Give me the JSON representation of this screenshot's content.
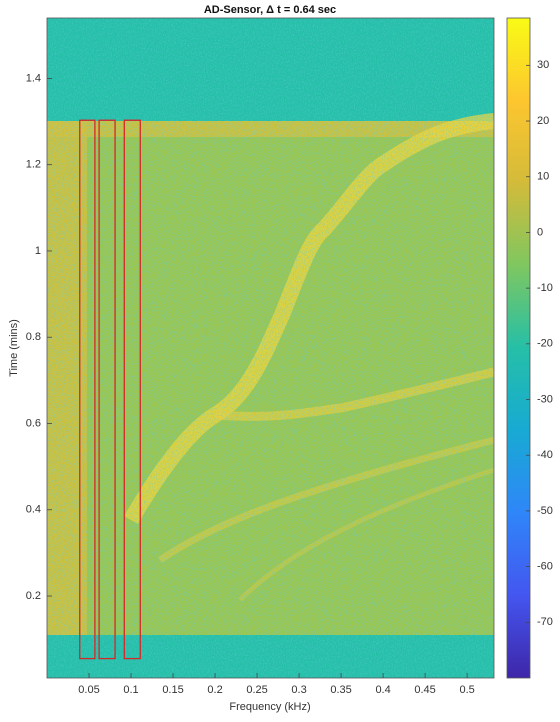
{
  "chart_data": {
    "type": "heatmap",
    "title": "AD-Sensor, Δ t = 0.64 sec",
    "x_label": "Frequency (kHz)",
    "y_label": "Time (mins)",
    "xlim": [
      0,
      0.532
    ],
    "xticks": [
      0.05,
      0.1,
      0.15,
      0.2,
      0.25,
      0.3,
      0.35,
      0.4,
      0.45,
      0.5
    ],
    "ylim": [
      0.01,
      1.54
    ],
    "yticks": [
      0.2,
      0.4,
      0.6,
      0.8,
      1,
      1.2,
      1.4
    ],
    "clim": [
      -80,
      38.5
    ],
    "cticks": [
      30,
      20,
      10,
      0,
      -10,
      -20,
      -30,
      -40,
      -50,
      -60,
      -70
    ],
    "colormap": [
      "#3e26a8",
      "#4456f0",
      "#2f86f9",
      "#18aad3",
      "#25bfa7",
      "#7fc760",
      "#d3bb3a",
      "#fdc62f",
      "#f9fb15"
    ],
    "boxes": [
      {
        "x": [
          0.039,
          0.057
        ],
        "y": [
          0.055,
          1.303
        ]
      },
      {
        "x": [
          0.062,
          0.081
        ],
        "y": [
          0.055,
          1.303
        ]
      },
      {
        "x": [
          0.092,
          0.111
        ],
        "y": [
          0.055,
          1.303
        ]
      }
    ],
    "box_color": "#d62728"
  }
}
